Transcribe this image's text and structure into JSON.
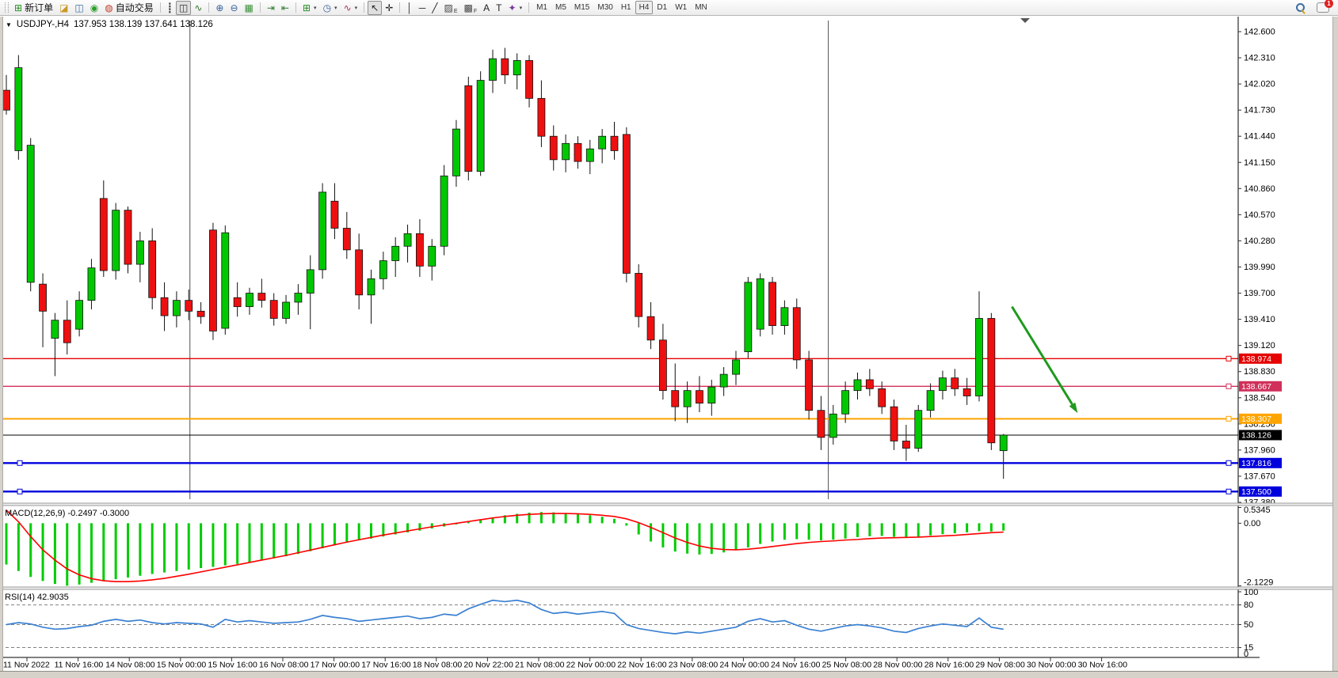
{
  "toolbar": {
    "items": [
      {
        "name": "new-order",
        "glyph": "⊞",
        "glyph_color": "#1c8c1c",
        "label": "新订单"
      },
      {
        "name": "eraser",
        "glyph": "◪",
        "glyph_color": "#c99a28"
      },
      {
        "name": "publish-chart",
        "glyph": "◫",
        "glyph_color": "#3a6fa8"
      },
      {
        "name": "signals",
        "glyph": "◉",
        "glyph_color": "#2b9e2b"
      },
      {
        "name": "auto-trading",
        "glyph": "◍",
        "glyph_color": "#c23a2a",
        "label": "自动交易"
      },
      {
        "sep": 1
      },
      {
        "name": "bar-chart",
        "glyph": "┋",
        "glyph_color": "#333333"
      },
      {
        "name": "candlestick-chart",
        "glyph": "◫",
        "glyph_color": "#333333",
        "active": 1
      },
      {
        "name": "line-chart",
        "glyph": "∿",
        "glyph_color": "#2f6f2f"
      },
      {
        "sep": 1
      },
      {
        "name": "zoom-in",
        "glyph": "⊕",
        "glyph_color": "#355e9e"
      },
      {
        "name": "zoom-out",
        "glyph": "⊖",
        "glyph_color": "#355e9e"
      },
      {
        "name": "tile-windows",
        "glyph": "▦",
        "glyph_color": "#3a8f3a"
      },
      {
        "sep": 1
      },
      {
        "name": "auto-scroll",
        "glyph": "⇥",
        "glyph_color": "#2f7a2f"
      },
      {
        "name": "chart-shift",
        "glyph": "⇤",
        "glyph_color": "#2f7a2f"
      },
      {
        "sep": 1
      },
      {
        "name": "new-chart",
        "glyph": "⊞",
        "glyph_color": "#1c8c1c",
        "dropdown": 1
      },
      {
        "name": "chart-periods",
        "glyph": "◷",
        "glyph_color": "#355e9e",
        "dropdown": 1
      },
      {
        "name": "indicators",
        "glyph": "∿",
        "glyph_color": "#b03060",
        "dropdown": 1
      },
      {
        "sep": 1
      },
      {
        "name": "cursor",
        "glyph": "↖",
        "glyph_color": "#222222",
        "active": 1
      },
      {
        "name": "crosshair",
        "glyph": "✛",
        "glyph_color": "#222222"
      },
      {
        "sep": 1
      },
      {
        "name": "vertical-line",
        "glyph": "│",
        "glyph_color": "#222222"
      },
      {
        "name": "horizontal-line",
        "glyph": "─",
        "glyph_color": "#222222"
      },
      {
        "name": "trend-line",
        "glyph": "╱",
        "glyph_color": "#222222"
      },
      {
        "name": "equidistant-channel",
        "glyph": "▨",
        "sub": "E",
        "glyph_color": "#444444"
      },
      {
        "name": "fibonacci",
        "glyph": "▩",
        "sub": "F",
        "glyph_color": "#444444"
      },
      {
        "name": "text",
        "glyph": "A",
        "glyph_color": "#222222"
      },
      {
        "name": "text-label",
        "glyph": "T",
        "glyph_color": "#222222"
      },
      {
        "name": "arrows",
        "glyph": "✦",
        "glyph_color": "#7a3aa8",
        "dropdown": 1
      },
      {
        "sep": 1
      }
    ],
    "timeframes": [
      "M1",
      "M5",
      "M15",
      "M30",
      "H1",
      "H4",
      "D1",
      "W1",
      "MN"
    ],
    "active_timeframe": "H4",
    "notification_count": "1"
  },
  "chart": {
    "symbol_period": "USDJPY-,H4",
    "ohlc_display": "137.953 138.139 137.641 138.126",
    "dropdown_icon": "▼"
  },
  "chart_data": [
    {
      "type": "candlestick",
      "title": "USDJPY-,H4",
      "timeframe": "H4",
      "grid": "off",
      "ylim": [
        137.354,
        142.758
      ],
      "y_ticks": [
        "142.600",
        "142.310",
        "142.020",
        "141.730",
        "141.440",
        "141.150",
        "140.860",
        "140.570",
        "140.280",
        "139.990",
        "139.700",
        "139.410",
        "139.120",
        "138.830",
        "138.540",
        "138.250",
        "137.960",
        "137.670",
        "137.380"
      ],
      "x_labels": [
        "11 Nov 2022",
        "11 Nov 16:00",
        "14 Nov 08:00",
        "15 Nov 00:00",
        "15 Nov 16:00",
        "16 Nov 08:00",
        "17 Nov 00:00",
        "17 Nov 16:00",
        "18 Nov 08:00",
        "20 Nov 22:00",
        "21 Nov 08:00",
        "22 Nov 00:00",
        "22 Nov 16:00",
        "23 Nov 08:00",
        "24 Nov 00:00",
        "24 Nov 16:00",
        "25 Nov 08:00",
        "28 Nov 00:00",
        "28 Nov 16:00",
        "29 Nov 08:00",
        "30 Nov 00:00",
        "30 Nov 16:00"
      ],
      "open": [
        141.95,
        141.28,
        139.82,
        139.8,
        139.2,
        139.4,
        139.3,
        139.62,
        140.75,
        139.95,
        140.62,
        140.02,
        140.28,
        139.65,
        139.45,
        139.62,
        139.5,
        140.4,
        139.31,
        139.65,
        139.55,
        139.7,
        139.62,
        139.42,
        139.6,
        139.7,
        139.96,
        140.72,
        140.42,
        140.18,
        139.68,
        139.86,
        140.06,
        140.22,
        140.36,
        140.0,
        140.22,
        141.0,
        142.0,
        141.05,
        142.06,
        142.3,
        142.12,
        142.28,
        141.86,
        141.44,
        141.18,
        141.36,
        141.16,
        141.3,
        141.44,
        141.46,
        139.92,
        139.44,
        139.18,
        138.62,
        138.44,
        138.62,
        138.48,
        138.66,
        138.8,
        139.05,
        139.3,
        139.82,
        139.34,
        139.54,
        138.96,
        138.4,
        138.1,
        138.36,
        138.62,
        138.74,
        138.64,
        138.44,
        138.06,
        137.98,
        138.4,
        138.62,
        138.76,
        138.64,
        138.56,
        139.42,
        137.953
      ],
      "high": [
        142.12,
        142.34,
        141.42,
        139.92,
        139.48,
        139.62,
        139.72,
        140.08,
        140.95,
        140.7,
        140.66,
        140.38,
        140.42,
        139.82,
        139.72,
        139.74,
        139.6,
        140.48,
        140.45,
        139.82,
        139.76,
        139.86,
        139.7,
        139.68,
        139.8,
        140.12,
        140.92,
        140.92,
        140.6,
        140.36,
        139.96,
        140.16,
        140.32,
        140.46,
        140.52,
        140.3,
        141.12,
        141.62,
        142.1,
        142.16,
        142.4,
        142.42,
        142.36,
        142.34,
        142.06,
        141.56,
        141.46,
        141.44,
        141.4,
        141.52,
        141.6,
        141.54,
        140.02,
        139.6,
        139.36,
        138.92,
        138.72,
        138.78,
        138.74,
        138.88,
        139.06,
        139.88,
        139.92,
        139.88,
        139.62,
        139.64,
        139.06,
        138.56,
        138.46,
        138.72,
        138.82,
        138.86,
        138.72,
        138.52,
        138.24,
        138.46,
        138.7,
        138.84,
        138.86,
        138.76,
        139.72,
        139.48,
        138.139
      ],
      "low": [
        141.68,
        141.18,
        139.72,
        139.1,
        138.78,
        139.02,
        139.22,
        139.52,
        139.88,
        139.85,
        139.92,
        139.82,
        139.52,
        139.28,
        139.32,
        139.4,
        139.36,
        139.18,
        139.24,
        139.44,
        139.46,
        139.54,
        139.34,
        139.36,
        139.46,
        139.3,
        139.86,
        140.3,
        140.08,
        139.52,
        139.36,
        139.74,
        139.88,
        140.04,
        139.88,
        139.84,
        140.12,
        140.88,
        140.95,
        141.0,
        141.92,
        142.02,
        141.96,
        141.76,
        141.32,
        141.06,
        141.04,
        141.08,
        141.02,
        141.14,
        141.18,
        139.82,
        139.32,
        139.08,
        138.52,
        138.28,
        138.26,
        138.38,
        138.34,
        138.56,
        138.68,
        138.98,
        139.22,
        139.24,
        139.24,
        138.86,
        138.3,
        137.96,
        138.02,
        138.26,
        138.52,
        138.56,
        138.36,
        137.96,
        137.84,
        137.94,
        138.32,
        138.52,
        138.56,
        138.46,
        138.5,
        137.96,
        137.641
      ],
      "close": [
        141.73,
        142.2,
        141.34,
        139.5,
        139.4,
        139.15,
        139.62,
        139.98,
        139.95,
        140.62,
        140.02,
        140.28,
        139.65,
        139.45,
        139.62,
        139.5,
        139.44,
        139.28,
        140.37,
        139.55,
        139.7,
        139.62,
        139.42,
        139.6,
        139.7,
        139.96,
        140.82,
        140.42,
        140.18,
        139.68,
        139.86,
        140.06,
        140.22,
        140.36,
        140.0,
        140.22,
        141.0,
        141.52,
        141.05,
        142.06,
        142.3,
        142.12,
        142.28,
        141.86,
        141.44,
        141.18,
        141.36,
        141.16,
        141.3,
        141.44,
        141.28,
        139.92,
        139.44,
        139.18,
        138.62,
        138.44,
        138.62,
        138.48,
        138.66,
        138.8,
        138.96,
        139.82,
        139.86,
        139.34,
        139.54,
        138.96,
        138.4,
        138.1,
        138.36,
        138.62,
        138.74,
        138.64,
        138.44,
        138.06,
        137.98,
        138.4,
        138.62,
        138.76,
        138.64,
        138.56,
        139.42,
        138.04,
        138.126
      ],
      "colors": {
        "bull": "#00c800",
        "bear": "#ee1010",
        "wick": "#111111"
      },
      "levels": [
        {
          "price": 138.974,
          "label": "138.974",
          "color": "#e60000",
          "width": 1.4,
          "handles": "right"
        },
        {
          "price": 138.667,
          "label": "138.667",
          "color": "#d0305a",
          "width": 1.4,
          "handles": "right"
        },
        {
          "price": 138.307,
          "label": "138.307",
          "color": "#ffa500",
          "width": 2,
          "handles": "right"
        },
        {
          "price": 137.816,
          "label": "137.816",
          "color": "#0000dd",
          "width": 2.4,
          "handles": "both"
        },
        {
          "price": 137.5,
          "label": "137.500",
          "color": "#0000dd",
          "width": 2.4,
          "handles": "both"
        }
      ],
      "current_price": {
        "value": 138.126,
        "label": "138.126",
        "line_color": "#000000",
        "label_bg": "#000000"
      },
      "objects": {
        "vertical_lines": [
          {
            "bar": 15.1
          },
          {
            "bar": 67.6
          }
        ],
        "arrow": {
          "from_bar": 82.7,
          "from_price": 139.55,
          "to_bar": 88.1,
          "to_price": 138.37,
          "color": "#1e9a1e",
          "width": 3
        }
      }
    },
    {
      "type": "bar",
      "name": "MACD(12,26,9)",
      "values_text": "-0.2497 -0.3000",
      "y_ticks": [
        "0.5345",
        "0.00",
        "-2.1229"
      ],
      "histogram": [
        -1.4,
        -1.62,
        -1.82,
        -1.96,
        -2.06,
        -2.12,
        -2.08,
        -2.02,
        -1.96,
        -1.9,
        -1.84,
        -1.78,
        -1.72,
        -1.67,
        -1.62,
        -1.57,
        -1.52,
        -1.48,
        -1.43,
        -1.38,
        -1.32,
        -1.26,
        -1.19,
        -1.12,
        -1.04,
        -0.95,
        -0.85,
        -0.75,
        -0.66,
        -0.58,
        -0.52,
        -0.45,
        -0.38,
        -0.31,
        -0.25,
        -0.18,
        -0.11,
        -0.04,
        0.04,
        0.12,
        0.2,
        0.27,
        0.32,
        0.36,
        0.38,
        0.37,
        0.35,
        0.31,
        0.27,
        0.22,
        0.15,
        -0.08,
        -0.38,
        -0.62,
        -0.82,
        -0.96,
        -1.03,
        -1.06,
        -1.04,
        -0.99,
        -0.92,
        -0.82,
        -0.7,
        -0.62,
        -0.56,
        -0.54,
        -0.56,
        -0.58,
        -0.56,
        -0.52,
        -0.47,
        -0.44,
        -0.43,
        -0.46,
        -0.49,
        -0.46,
        -0.41,
        -0.37,
        -0.34,
        -0.31,
        -0.27,
        -0.28,
        -0.2497
      ],
      "signal": [
        0.45,
        0.05,
        -0.45,
        -0.9,
        -1.25,
        -1.55,
        -1.75,
        -1.88,
        -1.95,
        -1.98,
        -1.98,
        -1.96,
        -1.92,
        -1.87,
        -1.8,
        -1.73,
        -1.65,
        -1.57,
        -1.49,
        -1.41,
        -1.33,
        -1.25,
        -1.17,
        -1.09,
        -1.0,
        -0.91,
        -0.82,
        -0.73,
        -0.64,
        -0.56,
        -0.48,
        -0.4,
        -0.33,
        -0.26,
        -0.19,
        -0.12,
        -0.06,
        0.0,
        0.06,
        0.12,
        0.18,
        0.23,
        0.27,
        0.3,
        0.32,
        0.33,
        0.33,
        0.32,
        0.3,
        0.27,
        0.23,
        0.15,
        0.02,
        -0.14,
        -0.32,
        -0.5,
        -0.65,
        -0.77,
        -0.85,
        -0.89,
        -0.9,
        -0.88,
        -0.84,
        -0.79,
        -0.74,
        -0.69,
        -0.65,
        -0.62,
        -0.6,
        -0.57,
        -0.55,
        -0.52,
        -0.5,
        -0.49,
        -0.48,
        -0.47,
        -0.45,
        -0.43,
        -0.41,
        -0.38,
        -0.35,
        -0.32,
        -0.3
      ],
      "colors": {
        "histogram": "#00cc00",
        "signal": "#ff0000"
      }
    },
    {
      "type": "line",
      "name": "RSI(14)",
      "value_text": "42.9035",
      "y_ticks": [
        "100",
        "80",
        "50",
        "15",
        "0"
      ],
      "levels": [
        80,
        50,
        15
      ],
      "values": [
        50,
        53,
        51,
        46,
        43,
        44,
        47,
        49,
        55,
        58,
        55,
        57,
        53,
        51,
        53,
        52,
        51,
        46,
        58,
        54,
        56,
        54,
        52,
        53,
        54,
        58,
        64,
        61,
        59,
        55,
        57,
        59,
        61,
        63,
        59,
        61,
        66,
        64,
        74,
        81,
        87,
        85,
        87,
        83,
        73,
        67,
        69,
        66,
        68,
        70,
        67,
        50,
        44,
        41,
        38,
        36,
        39,
        37,
        40,
        43,
        46,
        55,
        59,
        54,
        56,
        49,
        43,
        40,
        44,
        48,
        50,
        48,
        45,
        40,
        38,
        44,
        48,
        51,
        49,
        47,
        60,
        46,
        42.9
      ],
      "color": "#3a80d2"
    }
  ]
}
